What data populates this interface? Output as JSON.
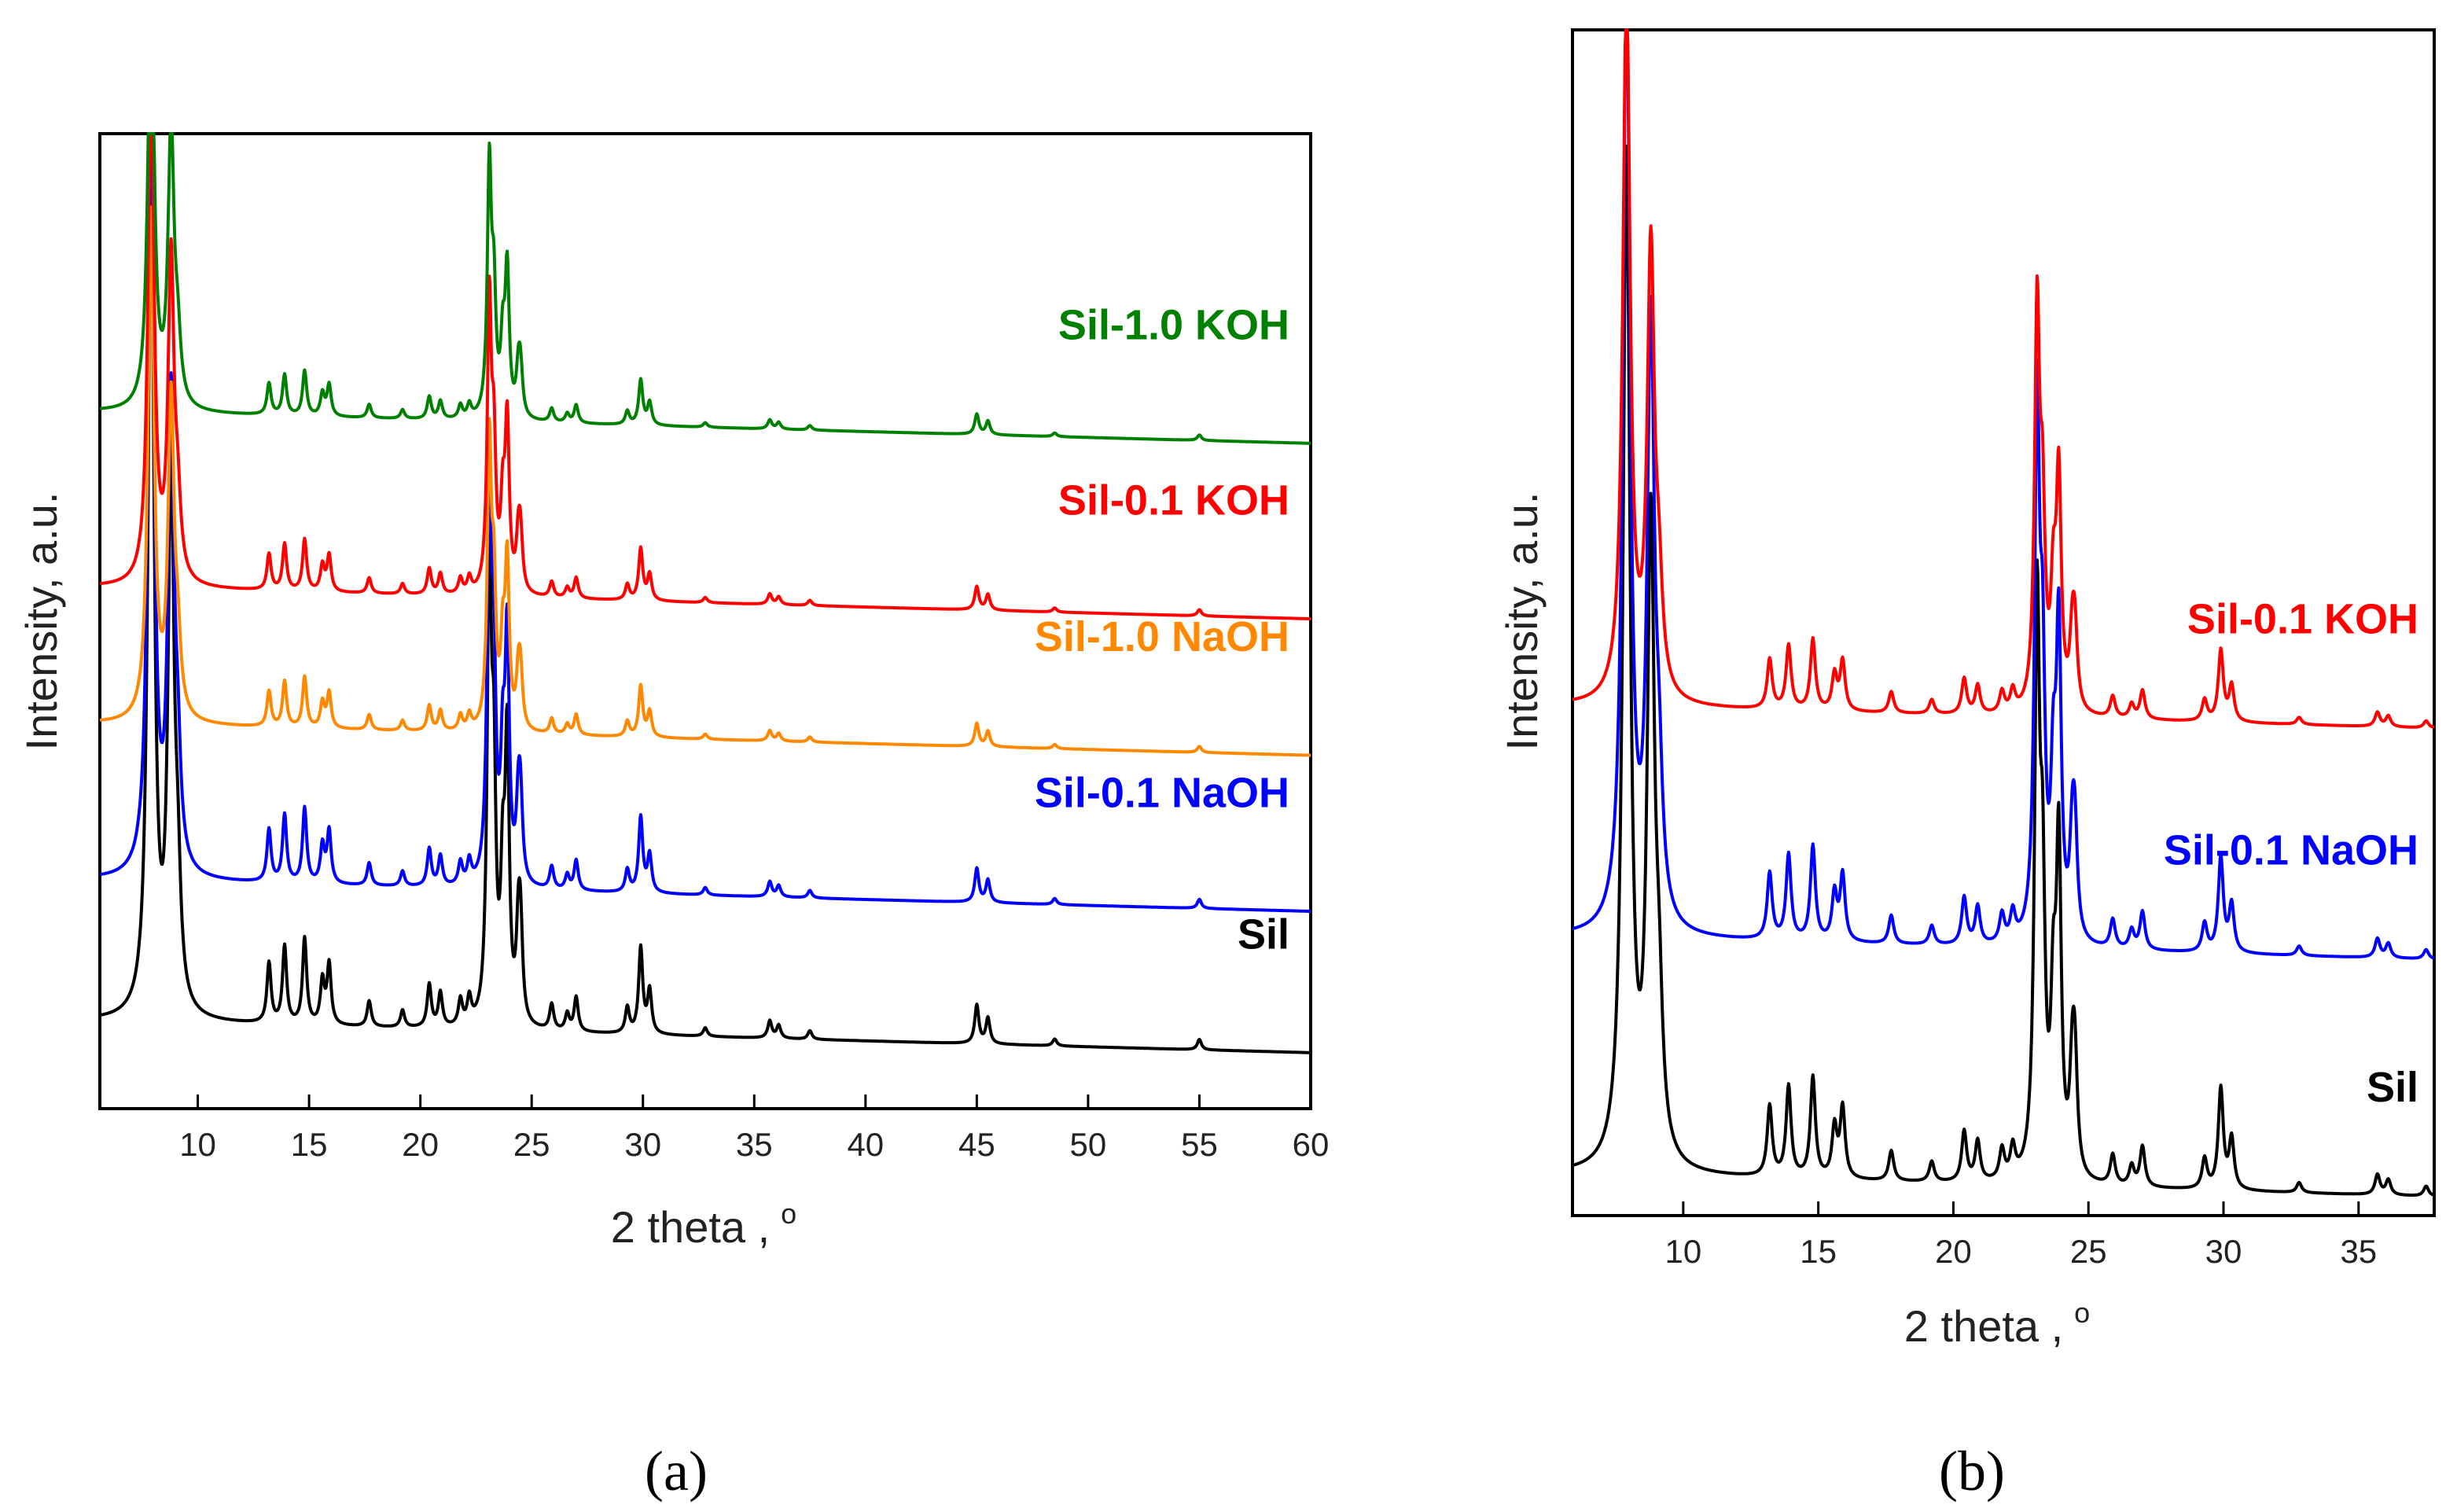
{
  "figure": {
    "panel_a_label": "(a)",
    "panel_b_label": "(b)"
  },
  "chart_data": [
    {
      "id": "a",
      "type": "line",
      "title": "",
      "xlabel": "2 theta , o",
      "xlabel_text": "2 theta ,",
      "xlabel_superscript": "o",
      "ylabel": "Intensity, a.u.",
      "xlim": [
        5.6,
        60
      ],
      "ylim": [
        0,
        1
      ],
      "xticks": [
        10,
        15,
        20,
        25,
        30,
        35,
        40,
        45,
        50,
        55,
        60
      ],
      "grid": false,
      "series": [
        {
          "name": "Sil",
          "color": "#000000",
          "offset": 0.09,
          "scale": 0.88
        },
        {
          "name": "Sil-0.1 NaOH",
          "color": "#0000ff",
          "offset": 0.235,
          "scale": 0.77
        },
        {
          "name": "Sil-1.0 NaOH",
          "color": "#ff8800",
          "offset": 0.395,
          "scale": 0.52
        },
        {
          "name": "Sil-0.1 KOH",
          "color": "#ff0000",
          "offset": 0.535,
          "scale": 0.53
        },
        {
          "name": "Sil-1.0 KOH",
          "color": "#008000",
          "offset": 0.715,
          "scale": 0.46
        }
      ]
    },
    {
      "id": "b",
      "type": "line",
      "title": "",
      "xlabel": "2 theta , o",
      "xlabel_text": "2 theta ,",
      "xlabel_superscript": "o",
      "ylabel": "Intensity, a.u.",
      "xlim": [
        5.9,
        37.8
      ],
      "ylim": [
        0,
        1
      ],
      "xticks": [
        10,
        15,
        20,
        25,
        30,
        35
      ],
      "grid": false,
      "series": [
        {
          "name": "Sil",
          "color": "#000000",
          "offset": 0.035,
          "scale": 0.85
        },
        {
          "name": "Sil-0.1 NaOH",
          "color": "#0000ff",
          "offset": 0.235,
          "scale": 0.8
        },
        {
          "name": "Sil-0.1 KOH",
          "color": "#ff0000",
          "offset": 0.43,
          "scale": 0.6
        }
      ]
    }
  ],
  "peaks": [
    [
      7.9,
      1.0
    ],
    [
      8.8,
      0.62
    ],
    [
      9.1,
      0.12
    ],
    [
      13.2,
      0.07
    ],
    [
      13.9,
      0.09
    ],
    [
      14.8,
      0.1
    ],
    [
      15.6,
      0.05
    ],
    [
      15.9,
      0.07
    ],
    [
      17.7,
      0.03
    ],
    [
      19.2,
      0.02
    ],
    [
      20.4,
      0.05
    ],
    [
      20.9,
      0.04
    ],
    [
      21.8,
      0.03
    ],
    [
      22.2,
      0.03
    ],
    [
      23.1,
      0.55
    ],
    [
      23.3,
      0.25
    ],
    [
      23.7,
      0.15
    ],
    [
      23.9,
      0.32
    ],
    [
      24.4,
      0.09
    ],
    [
      24.5,
      0.1
    ],
    [
      25.9,
      0.03
    ],
    [
      26.6,
      0.02
    ],
    [
      27.0,
      0.04
    ],
    [
      29.3,
      0.03
    ],
    [
      29.9,
      0.1
    ],
    [
      30.3,
      0.05
    ],
    [
      32.8,
      0.01
    ],
    [
      35.7,
      0.02
    ],
    [
      36.1,
      0.015
    ],
    [
      37.5,
      0.01
    ],
    [
      45.0,
      0.045
    ],
    [
      45.5,
      0.03
    ],
    [
      48.5,
      0.008
    ],
    [
      55.0,
      0.012
    ]
  ]
}
